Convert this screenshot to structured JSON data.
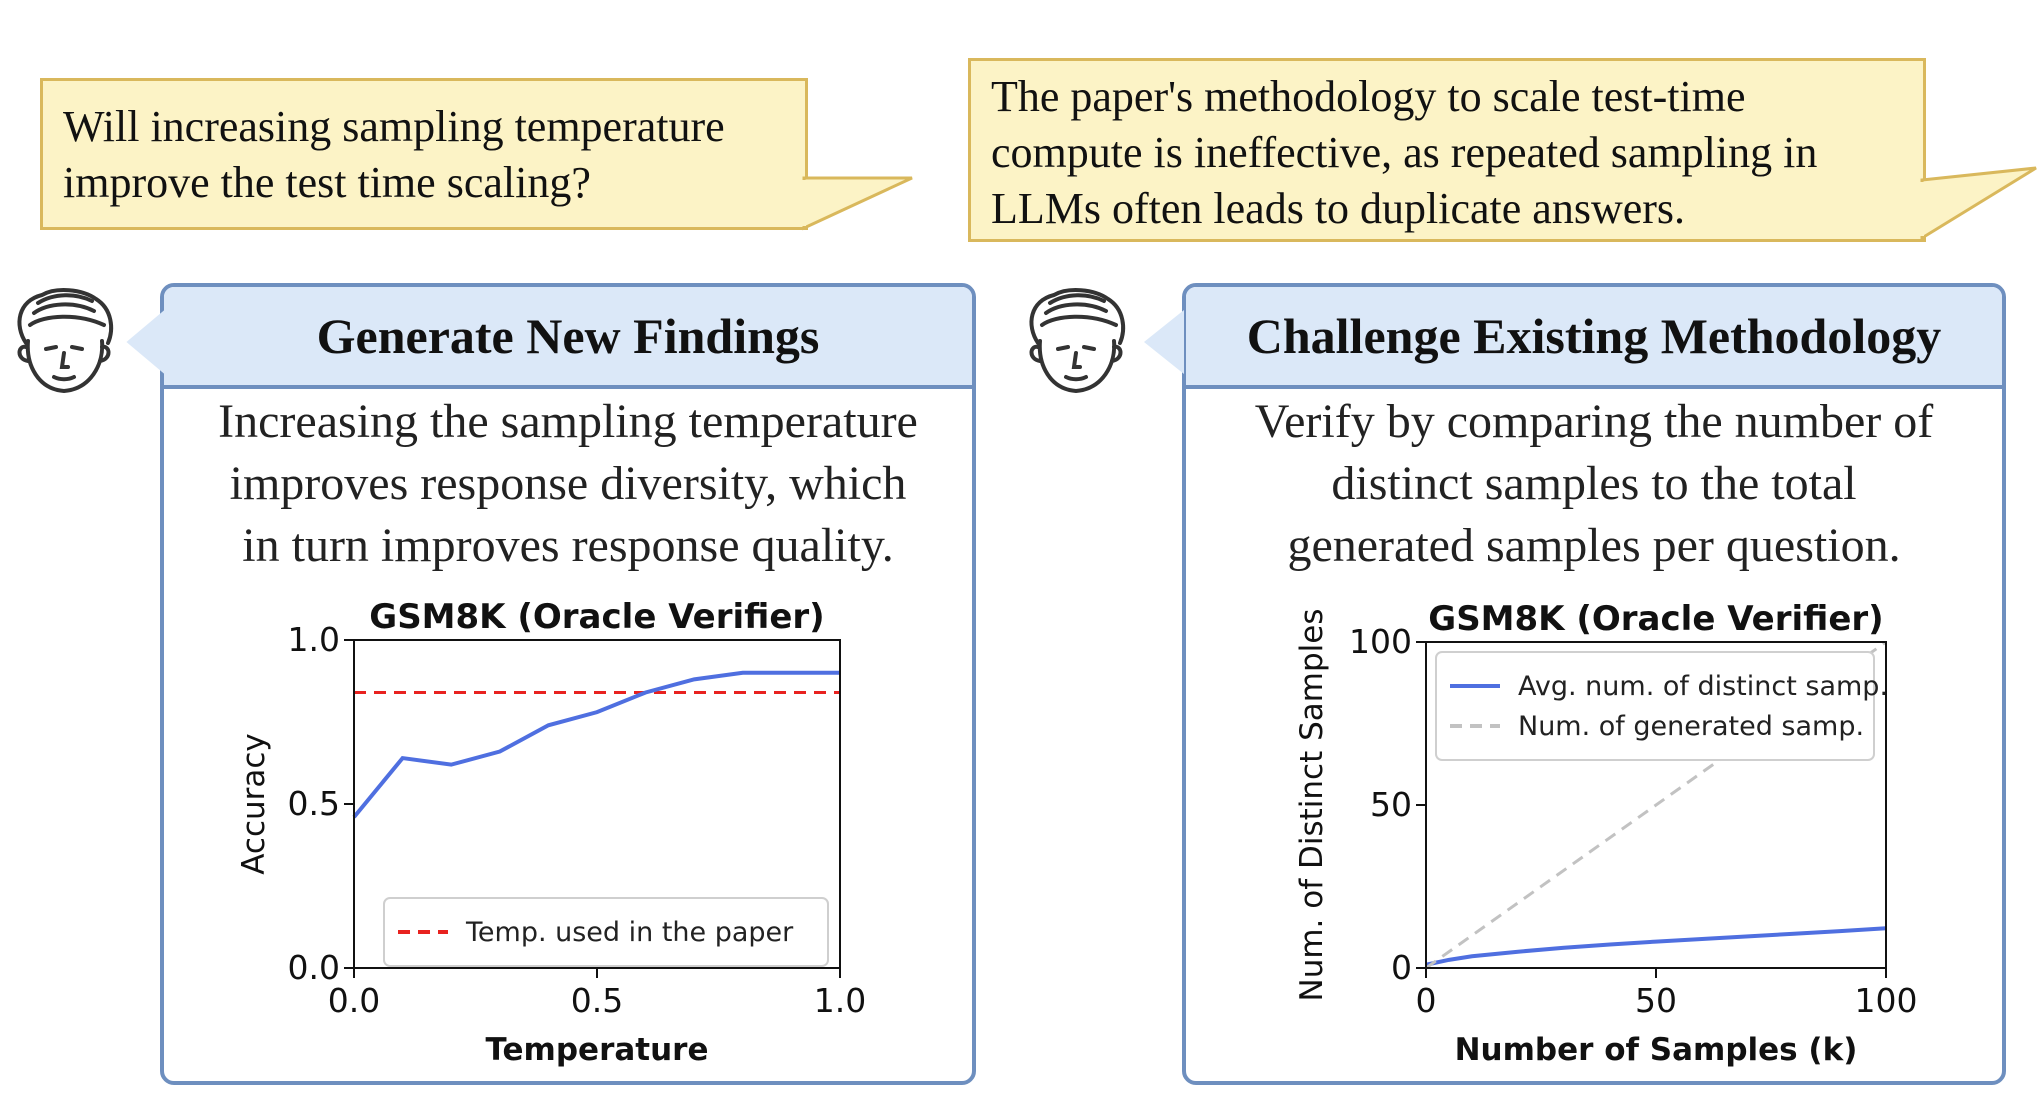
{
  "bubbles": {
    "left": "Will increasing sampling temperature\nimprove the test time scaling?",
    "right": "The paper's methodology to scale test-time\ncompute is ineffective, as repeated sampling in\nLLMs often leads to duplicate answers."
  },
  "panels": {
    "left": {
      "title": "Generate New Findings",
      "text": "Increasing the sampling temperature\nimproves response diversity, which\nin turn improves response quality."
    },
    "right": {
      "title": "Challenge Existing Methodology",
      "text": "Verify by comparing the number of\ndistinct samples to the total\ngenerated samples per question."
    }
  },
  "colors": {
    "bubble_fill": "#fcf3c6",
    "bubble_border": "#d9b85c",
    "panel_border": "#6e8fbf",
    "panel_header": "#dbe8f8",
    "series_blue": "#4f6fe0",
    "reference_red": "#e8221f",
    "reference_gray": "#c2c2c2"
  },
  "icons": [
    "thinking-face-icon",
    "thinking-face-icon"
  ],
  "chart_data": [
    {
      "type": "line",
      "title": "GSM8K (Oracle Verifier)",
      "xlabel": "Temperature",
      "ylabel": "Accuracy",
      "xlim": [
        0,
        1
      ],
      "ylim": [
        0,
        1
      ],
      "xticks": [
        "0.0",
        "0.5",
        "1.0"
      ],
      "yticks": [
        "0.0",
        "0.5",
        "1.0"
      ],
      "grid": false,
      "legend_position": "bottom-right",
      "series": [
        {
          "x": [
            0.0,
            0.1,
            0.2,
            0.3,
            0.4,
            0.5,
            0.6,
            0.7,
            0.8,
            0.9,
            1.0
          ],
          "y": [
            0.46,
            0.64,
            0.62,
            0.66,
            0.74,
            0.78,
            0.84,
            0.88,
            0.9,
            0.9,
            0.9
          ],
          "color": "#4f6fe0"
        }
      ],
      "reference_lines": [
        {
          "y": 0.84,
          "name": "Temp. used in the paper",
          "style": "dashed",
          "color": "#e8221f"
        }
      ]
    },
    {
      "type": "line",
      "title": "GSM8K (Oracle Verifier)",
      "xlabel": "Number of Samples (k)",
      "ylabel": "Num. of Distinct Samples",
      "xlim": [
        0,
        100
      ],
      "ylim": [
        0,
        100
      ],
      "xticks": [
        "0",
        "50",
        "100"
      ],
      "yticks": [
        "0",
        "50",
        "100"
      ],
      "grid": false,
      "legend_position": "top-left",
      "series": [
        {
          "name": "Avg. num. of distinct samp.",
          "x": [
            0,
            5,
            10,
            20,
            30,
            40,
            50,
            60,
            70,
            80,
            90,
            100
          ],
          "y": [
            1,
            2.5,
            3.6,
            5.0,
            6.2,
            7.2,
            8.1,
            8.9,
            9.7,
            10.5,
            11.3,
            12.2
          ],
          "style": "solid",
          "color": "#4f6fe0"
        },
        {
          "name": "Num. of generated samp.",
          "x": [
            0,
            100
          ],
          "y": [
            0,
            100
          ],
          "style": "dashed",
          "color": "#c2c2c2"
        }
      ]
    }
  ]
}
